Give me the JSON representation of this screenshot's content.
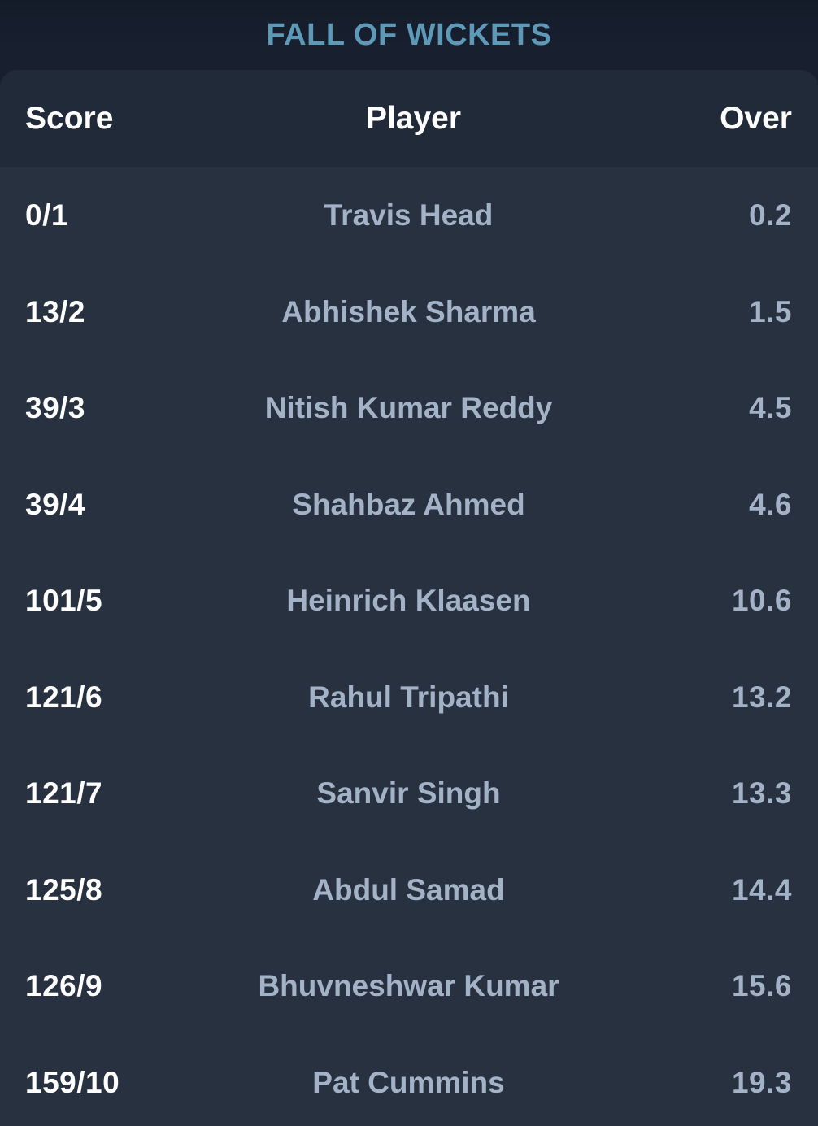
{
  "title": "FALL OF WICKETS",
  "table": {
    "headers": {
      "score": "Score",
      "player": "Player",
      "over": "Over"
    },
    "rows": [
      {
        "score": "0/1",
        "player": "Travis Head",
        "over": "0.2"
      },
      {
        "score": "13/2",
        "player": "Abhishek Sharma",
        "over": "1.5"
      },
      {
        "score": "39/3",
        "player": "Nitish Kumar Reddy",
        "over": "4.5"
      },
      {
        "score": "39/4",
        "player": "Shahbaz Ahmed",
        "over": "4.6"
      },
      {
        "score": "101/5",
        "player": "Heinrich Klaasen",
        "over": "10.6"
      },
      {
        "score": "121/6",
        "player": "Rahul Tripathi",
        "over": "13.2"
      },
      {
        "score": "121/7",
        "player": "Sanvir Singh",
        "over": "13.3"
      },
      {
        "score": "125/8",
        "player": "Abdul Samad",
        "over": "14.4"
      },
      {
        "score": "126/9",
        "player": "Bhuvneshwar Kumar",
        "over": "15.6"
      },
      {
        "score": "159/10",
        "player": "Pat Cummins",
        "over": "19.3"
      }
    ]
  },
  "colors": {
    "title": "#5f99b8",
    "card": "#273140",
    "header": "#212a38",
    "muted_text": "#a3b2c7"
  }
}
